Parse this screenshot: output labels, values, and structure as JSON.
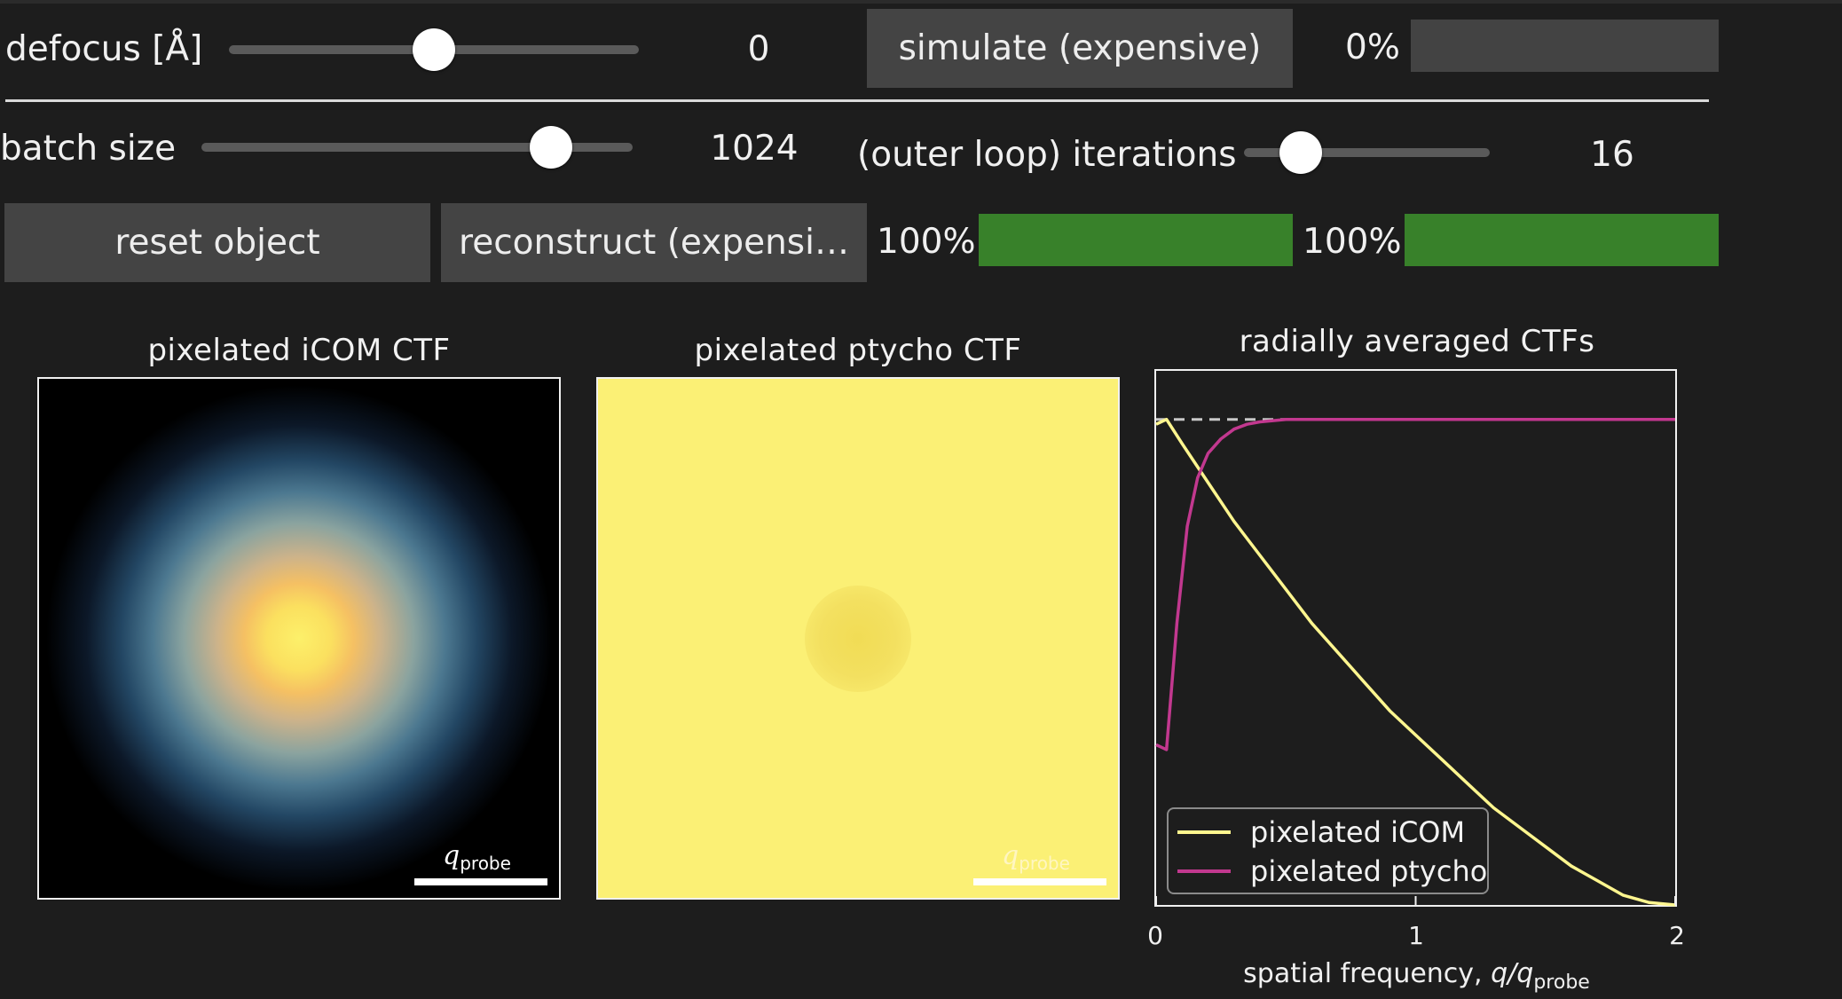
{
  "controls": {
    "defocus": {
      "label": "defocus [Å]",
      "value": "0",
      "slider_fraction": 0.5
    },
    "simulate": {
      "label": "simulate (expensive)",
      "progress_text": "0%",
      "progress": 0.0
    },
    "batch_size": {
      "label": "batch size",
      "value": "1024",
      "slider_fraction": 0.81
    },
    "iterations": {
      "label": "(outer loop) iterations",
      "value": "16",
      "slider_fraction": 0.23
    },
    "reset": {
      "label": "reset object"
    },
    "reconstruct": {
      "label": "reconstruct (expensi…",
      "progress_text": "100%",
      "progress": 1.0
    },
    "second_progress": {
      "progress_text": "100%",
      "progress": 1.0
    }
  },
  "panels": {
    "icom_title": "pixelated iCOM CTF",
    "ptycho_title": "pixelated ptycho CTF",
    "scalebar": {
      "symbol": "q",
      "subscript": "probe"
    }
  },
  "chart_data": {
    "type": "line",
    "title": "radially averaged CTFs",
    "xlabel": {
      "prefix": "spatial frequency, ",
      "symbol": "q/q",
      "subscript": "probe"
    },
    "xlim": [
      0,
      2
    ],
    "ylim": [
      0,
      1.1
    ],
    "xticks": [
      "0",
      "1",
      "2"
    ],
    "reference_line": {
      "y": 1.0,
      "style": "dashed",
      "color": "#c8c8c8"
    },
    "legend_position": "lower-left",
    "series": [
      {
        "name": "pixelated iCOM",
        "color": "#fff68f",
        "x": [
          0,
          0.04,
          0.1,
          0.2,
          0.3,
          0.4,
          0.5,
          0.6,
          0.7,
          0.8,
          0.9,
          1.0,
          1.1,
          1.2,
          1.3,
          1.4,
          1.5,
          1.6,
          1.7,
          1.8,
          1.9,
          2.0
        ],
        "y": [
          0.99,
          1.0,
          0.95,
          0.87,
          0.79,
          0.72,
          0.65,
          0.58,
          0.52,
          0.46,
          0.4,
          0.35,
          0.3,
          0.25,
          0.2,
          0.16,
          0.12,
          0.08,
          0.05,
          0.02,
          0.005,
          0.0
        ]
      },
      {
        "name": "pixelated ptycho",
        "color": "#c2388f",
        "x": [
          0,
          0.04,
          0.08,
          0.12,
          0.16,
          0.2,
          0.25,
          0.3,
          0.35,
          0.4,
          0.5,
          0.6,
          0.8,
          1.0,
          1.5,
          2.0
        ],
        "y": [
          0.33,
          0.32,
          0.58,
          0.78,
          0.88,
          0.93,
          0.96,
          0.98,
          0.99,
          0.995,
          1.0,
          1.0,
          1.0,
          1.0,
          1.0,
          1.0
        ]
      }
    ]
  }
}
